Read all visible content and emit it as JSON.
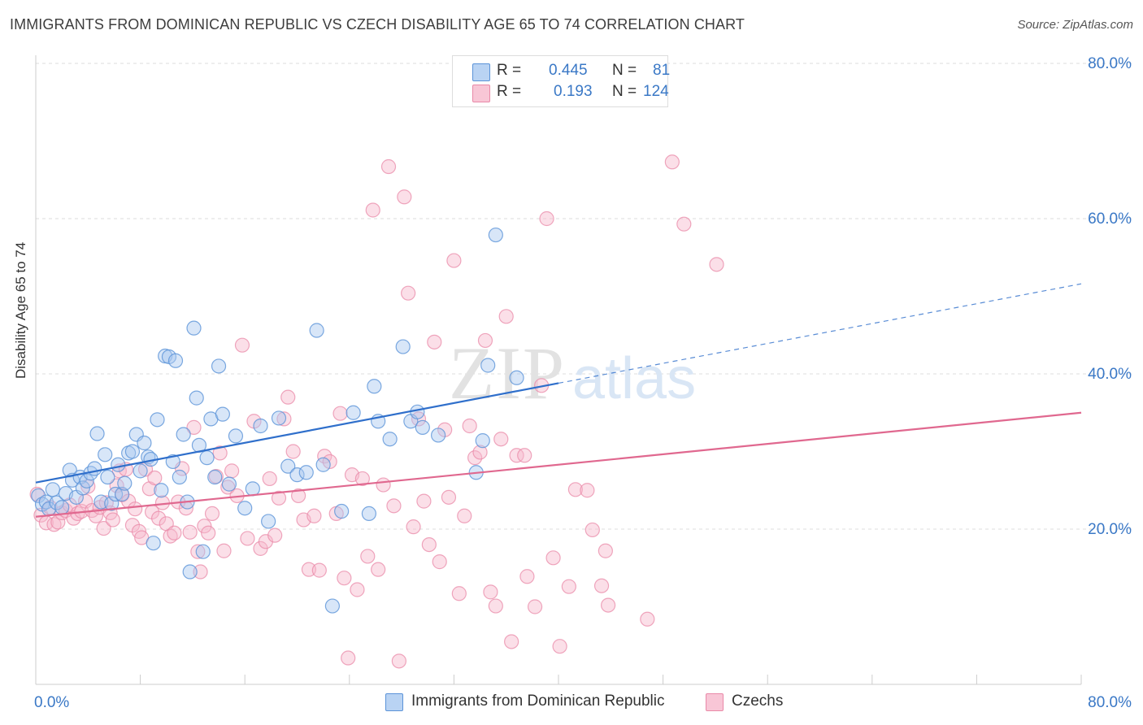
{
  "title": "IMMIGRANTS FROM DOMINICAN REPUBLIC VS CZECH DISABILITY AGE 65 TO 74 CORRELATION CHART",
  "source": "Source: ZipAtlas.com",
  "watermark": {
    "zip": "ZIP",
    "atlas": "atlas"
  },
  "legend": {
    "r_label": "R =",
    "n_label": "N =",
    "rows": [
      {
        "r": "0.445",
        "n": "81"
      },
      {
        "r": "0.193",
        "n": "124"
      }
    ]
  },
  "colors": {
    "blue_fill": "#a9c8f0",
    "blue_stroke": "#5b93d8",
    "blue_line": "#2f6fcb",
    "pink_fill": "#f6b8cc",
    "pink_stroke": "#e989a8",
    "pink_line": "#e0688f",
    "tick_text": "#3a78c6",
    "grid": "#dddddd"
  },
  "chart_data": {
    "type": "scatter",
    "title": "IMMIGRANTS FROM DOMINICAN REPUBLIC VS CZECH DISABILITY AGE 65 TO 74 CORRELATION CHART",
    "xlabel": "",
    "ylabel": "Disability Age 65 to 74",
    "xlim": [
      0,
      80
    ],
    "ylim": [
      0,
      80
    ],
    "x_tick_labels": [
      "0.0%",
      "80.0%"
    ],
    "y_ticks": [
      20,
      40,
      60,
      80
    ],
    "y_tick_labels": [
      "20.0%",
      "40.0%",
      "60.0%",
      "80.0%"
    ],
    "grid": true,
    "legend_position": "top-center",
    "series": [
      {
        "name": "Immigrants from Dominican Republic",
        "color": "#5b93d8",
        "r": 0.445,
        "n": 81,
        "trend": {
          "x": [
            0,
            40
          ],
          "y": [
            26.0,
            38.8
          ],
          "dashed_to": [
            80,
            51.6
          ]
        },
        "points": [
          [
            0.2,
            24.3
          ],
          [
            0.5,
            23.2
          ],
          [
            0.8,
            23.5
          ],
          [
            1.0,
            22.6
          ],
          [
            1.3,
            25.1
          ],
          [
            1.6,
            23.4
          ],
          [
            2.0,
            22.8
          ],
          [
            2.3,
            24.6
          ],
          [
            2.6,
            27.6
          ],
          [
            2.8,
            26.3
          ],
          [
            3.1,
            24.1
          ],
          [
            3.4,
            26.7
          ],
          [
            3.6,
            25.3
          ],
          [
            3.9,
            26.2
          ],
          [
            4.2,
            27.2
          ],
          [
            4.5,
            27.8
          ],
          [
            4.7,
            32.3
          ],
          [
            5.0,
            23.5
          ],
          [
            5.3,
            29.6
          ],
          [
            5.5,
            26.7
          ],
          [
            5.8,
            23.3
          ],
          [
            6.1,
            24.5
          ],
          [
            6.3,
            28.3
          ],
          [
            6.6,
            24.5
          ],
          [
            6.8,
            25.9
          ],
          [
            7.1,
            29.8
          ],
          [
            7.4,
            30.0
          ],
          [
            7.7,
            32.2
          ],
          [
            8.0,
            27.5
          ],
          [
            8.3,
            31.1
          ],
          [
            8.6,
            29.3
          ],
          [
            8.8,
            29.0
          ],
          [
            9.0,
            18.2
          ],
          [
            9.3,
            34.1
          ],
          [
            9.6,
            25.0
          ],
          [
            9.9,
            42.3
          ],
          [
            10.2,
            42.2
          ],
          [
            10.5,
            28.7
          ],
          [
            10.7,
            41.7
          ],
          [
            11.0,
            26.7
          ],
          [
            11.3,
            32.2
          ],
          [
            11.6,
            23.5
          ],
          [
            11.8,
            14.5
          ],
          [
            12.1,
            45.9
          ],
          [
            12.3,
            36.9
          ],
          [
            12.5,
            30.8
          ],
          [
            12.8,
            17.1
          ],
          [
            13.1,
            29.2
          ],
          [
            13.4,
            34.2
          ],
          [
            13.7,
            26.7
          ],
          [
            14.0,
            41.0
          ],
          [
            14.3,
            34.8
          ],
          [
            14.8,
            25.8
          ],
          [
            15.3,
            32.0
          ],
          [
            16.0,
            22.7
          ],
          [
            16.6,
            25.2
          ],
          [
            17.2,
            33.3
          ],
          [
            17.8,
            21.0
          ],
          [
            18.6,
            34.3
          ],
          [
            19.3,
            28.1
          ],
          [
            20.0,
            27.0
          ],
          [
            20.7,
            27.3
          ],
          [
            21.5,
            45.6
          ],
          [
            22.0,
            28.3
          ],
          [
            22.7,
            10.1
          ],
          [
            23.4,
            22.3
          ],
          [
            24.3,
            35.0
          ],
          [
            25.5,
            22.0
          ],
          [
            25.9,
            38.4
          ],
          [
            26.2,
            33.9
          ],
          [
            27.1,
            31.6
          ],
          [
            28.1,
            43.5
          ],
          [
            28.7,
            33.9
          ],
          [
            29.2,
            35.1
          ],
          [
            29.6,
            33.1
          ],
          [
            30.8,
            32.1
          ],
          [
            33.7,
            27.3
          ],
          [
            34.2,
            31.4
          ],
          [
            34.6,
            41.1
          ],
          [
            35.2,
            57.9
          ],
          [
            36.8,
            39.5
          ]
        ]
      },
      {
        "name": "Czechs",
        "color": "#e989a8",
        "r": 0.193,
        "n": 124,
        "trend": {
          "x": [
            0,
            80
          ],
          "y": [
            21.6,
            35.0
          ]
        },
        "points": [
          [
            0.1,
            24.5
          ],
          [
            0.4,
            21.8
          ],
          [
            0.8,
            20.8
          ],
          [
            1.1,
            22.8
          ],
          [
            1.4,
            20.6
          ],
          [
            1.7,
            20.9
          ],
          [
            2.0,
            22.1
          ],
          [
            2.3,
            22.4
          ],
          [
            2.6,
            23.1
          ],
          [
            2.9,
            21.4
          ],
          [
            3.2,
            22.0
          ],
          [
            3.5,
            22.3
          ],
          [
            3.8,
            23.6
          ],
          [
            4.0,
            25.5
          ],
          [
            4.3,
            22.4
          ],
          [
            4.6,
            21.7
          ],
          [
            4.9,
            22.8
          ],
          [
            5.2,
            20.1
          ],
          [
            5.4,
            23.4
          ],
          [
            5.7,
            22.1
          ],
          [
            5.9,
            21.2
          ],
          [
            6.2,
            25.6
          ],
          [
            6.4,
            27.5
          ],
          [
            6.6,
            24.4
          ],
          [
            6.9,
            27.7
          ],
          [
            7.1,
            23.6
          ],
          [
            7.4,
            20.5
          ],
          [
            7.6,
            22.6
          ],
          [
            7.9,
            19.7
          ],
          [
            8.1,
            18.9
          ],
          [
            8.4,
            27.7
          ],
          [
            8.7,
            25.2
          ],
          [
            8.9,
            22.2
          ],
          [
            9.1,
            26.6
          ],
          [
            9.4,
            21.4
          ],
          [
            9.7,
            23.4
          ],
          [
            10.0,
            20.7
          ],
          [
            10.3,
            19.1
          ],
          [
            10.6,
            19.5
          ],
          [
            10.9,
            23.5
          ],
          [
            11.2,
            27.8
          ],
          [
            11.5,
            22.7
          ],
          [
            11.8,
            19.6
          ],
          [
            12.1,
            33.1
          ],
          [
            12.4,
            17.1
          ],
          [
            12.6,
            14.5
          ],
          [
            12.9,
            20.4
          ],
          [
            13.2,
            19.5
          ],
          [
            13.5,
            22.0
          ],
          [
            13.8,
            26.8
          ],
          [
            14.1,
            29.8
          ],
          [
            14.4,
            17.2
          ],
          [
            14.7,
            25.4
          ],
          [
            15.0,
            27.5
          ],
          [
            15.4,
            24.3
          ],
          [
            15.8,
            43.7
          ],
          [
            16.2,
            18.8
          ],
          [
            16.7,
            33.9
          ],
          [
            17.2,
            17.5
          ],
          [
            17.6,
            18.4
          ],
          [
            17.9,
            26.5
          ],
          [
            18.3,
            19.2
          ],
          [
            18.6,
            24.0
          ],
          [
            19.0,
            34.2
          ],
          [
            19.3,
            37.0
          ],
          [
            19.7,
            30.0
          ],
          [
            20.1,
            24.3
          ],
          [
            20.5,
            21.2
          ],
          [
            20.9,
            14.8
          ],
          [
            21.3,
            21.7
          ],
          [
            21.7,
            14.7
          ],
          [
            22.1,
            29.4
          ],
          [
            22.5,
            28.7
          ],
          [
            23.0,
            22.0
          ],
          [
            23.3,
            34.9
          ],
          [
            23.6,
            13.7
          ],
          [
            23.9,
            3.4
          ],
          [
            24.2,
            27.0
          ],
          [
            24.6,
            12.2
          ],
          [
            25.0,
            26.5
          ],
          [
            25.4,
            16.5
          ],
          [
            25.8,
            61.1
          ],
          [
            26.2,
            14.8
          ],
          [
            26.6,
            25.7
          ],
          [
            27.0,
            66.7
          ],
          [
            27.4,
            23.0
          ],
          [
            27.8,
            3.0
          ],
          [
            28.2,
            62.8
          ],
          [
            28.5,
            50.4
          ],
          [
            28.9,
            20.3
          ],
          [
            29.3,
            34.2
          ],
          [
            29.7,
            23.6
          ],
          [
            30.1,
            18.0
          ],
          [
            30.5,
            44.1
          ],
          [
            30.9,
            15.8
          ],
          [
            31.3,
            32.8
          ],
          [
            31.6,
            24.1
          ],
          [
            32.0,
            54.6
          ],
          [
            32.4,
            11.7
          ],
          [
            32.8,
            21.7
          ],
          [
            33.2,
            33.3
          ],
          [
            33.6,
            29.2
          ],
          [
            34.0,
            29.9
          ],
          [
            34.4,
            44.3
          ],
          [
            34.8,
            11.9
          ],
          [
            35.2,
            10.1
          ],
          [
            35.6,
            31.6
          ],
          [
            36.0,
            47.4
          ],
          [
            36.4,
            5.5
          ],
          [
            36.8,
            29.5
          ],
          [
            37.6,
            13.9
          ],
          [
            38.2,
            10.0
          ],
          [
            38.7,
            38.5
          ],
          [
            39.1,
            60.0
          ],
          [
            39.6,
            16.3
          ],
          [
            40.1,
            4.9
          ],
          [
            40.8,
            12.6
          ],
          [
            41.3,
            25.1
          ],
          [
            42.2,
            25.0
          ],
          [
            42.6,
            19.9
          ],
          [
            43.3,
            12.7
          ],
          [
            43.6,
            17.2
          ],
          [
            43.8,
            10.2
          ],
          [
            46.8,
            8.4
          ],
          [
            48.7,
            67.3
          ],
          [
            49.6,
            59.3
          ],
          [
            52.1,
            54.1
          ],
          [
            37.4,
            29.5
          ]
        ]
      }
    ]
  }
}
